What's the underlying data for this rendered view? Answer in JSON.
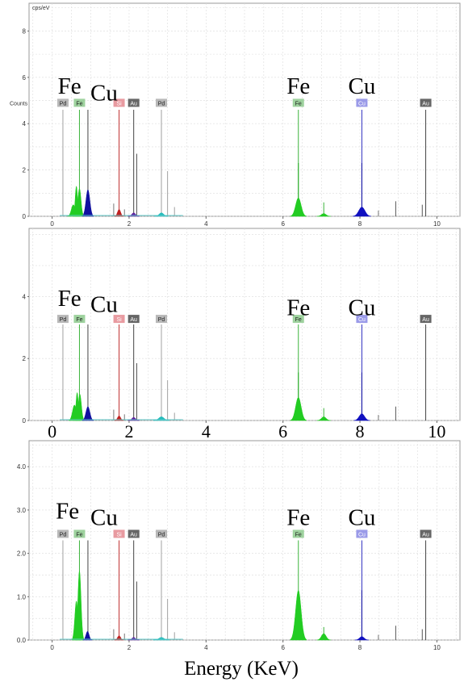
{
  "chart_data": [
    {
      "type": "bar",
      "title": "",
      "ylabel": "cps/eV",
      "ylabel2": "Counts",
      "xlabel": "",
      "xlim": [
        -0.6,
        10.6
      ],
      "ylim": [
        0,
        9.2
      ],
      "y_ticks": [
        "0",
        "2",
        "4",
        "6",
        "8"
      ],
      "x_ticks": [
        "0",
        "2",
        "4",
        "6",
        "8",
        "10"
      ],
      "large_x_ticks": false,
      "line_tags": [
        {
          "label": "Pd",
          "x": 0.28,
          "bg": "#b8b8b8",
          "fg": "#222222",
          "line": "#a0a0a0"
        },
        {
          "label": "Fe",
          "x": 0.71,
          "bg": "#9ed29e",
          "fg": "#222222",
          "line": "#3cb43c"
        },
        {
          "label": "Si",
          "x": 1.74,
          "bg": "#e89aa0",
          "fg": "#ffffff",
          "line": "#c03030"
        },
        {
          "label": "Au",
          "x": 2.12,
          "bg": "#666666",
          "fg": "#ffffff",
          "line": "#444444"
        },
        {
          "label": "Pd",
          "x": 2.84,
          "bg": "#b8b8b8",
          "fg": "#222222",
          "line": "#a0a0a0"
        },
        {
          "label": "Fe",
          "x": 6.4,
          "bg": "#9ed29e",
          "fg": "#222222",
          "line": "#3cb43c"
        },
        {
          "label": "Cu",
          "x": 8.05,
          "bg": "#9a9ae8",
          "fg": "#ffffff",
          "line": "#3030c0"
        },
        {
          "label": "Au",
          "x": 9.71,
          "bg": "#666666",
          "fg": "#ffffff",
          "line": "#444444"
        }
      ],
      "tag_y": 4.9,
      "big_labels": [
        {
          "text": "Fe",
          "x": 0.45,
          "y": 5.3
        },
        {
          "text": "Cu",
          "x": 1.35,
          "y": 5.0
        },
        {
          "text": "Fe",
          "x": 6.4,
          "y": 5.3
        },
        {
          "text": "Cu",
          "x": 8.05,
          "y": 5.3
        }
      ],
      "peaks": [
        {
          "x": 0.55,
          "height": 0.5,
          "width": 0.05,
          "color": "#22cc22"
        },
        {
          "x": 0.63,
          "height": 1.3,
          "width": 0.03,
          "color": "#22cc22"
        },
        {
          "x": 0.71,
          "height": 1.2,
          "width": 0.04,
          "color": "#22cc22"
        },
        {
          "x": 0.93,
          "height": 1.15,
          "width": 0.05,
          "color": "#1010a0"
        },
        {
          "x": 1.74,
          "height": 0.3,
          "width": 0.04,
          "color": "#c02020"
        },
        {
          "x": 2.12,
          "height": 0.15,
          "width": 0.05,
          "color": "#6020a0"
        },
        {
          "x": 2.84,
          "height": 0.15,
          "width": 0.06,
          "color": "#22bbbb"
        },
        {
          "x": 6.4,
          "height": 0.8,
          "width": 0.07,
          "color": "#22cc22"
        },
        {
          "x": 7.06,
          "height": 0.12,
          "width": 0.06,
          "color": "#22cc22"
        },
        {
          "x": 8.05,
          "height": 0.4,
          "width": 0.08,
          "color": "#1010c0"
        }
      ],
      "lines": [
        {
          "x": 0.28,
          "h": 4.6,
          "c": "#a0a0a0"
        },
        {
          "x": 0.71,
          "h": 4.6,
          "c": "#3cb43c"
        },
        {
          "x": 0.93,
          "h": 4.6,
          "c": "#444444"
        },
        {
          "x": 1.74,
          "h": 4.6,
          "c": "#c03030"
        },
        {
          "x": 2.12,
          "h": 4.6,
          "c": "#444444"
        },
        {
          "x": 2.2,
          "h": 2.7,
          "c": "#555555"
        },
        {
          "x": 2.84,
          "h": 4.6,
          "c": "#a0a0a0"
        },
        {
          "x": 3.0,
          "h": 1.95,
          "c": "#a0a0a0"
        },
        {
          "x": 6.4,
          "h": 4.6,
          "c": "#3cb43c"
        },
        {
          "x": 6.4,
          "h": 2.3,
          "c": "#22aa22"
        },
        {
          "x": 7.06,
          "h": 0.6,
          "c": "#3cb43c"
        },
        {
          "x": 8.05,
          "h": 4.6,
          "c": "#3030c0"
        },
        {
          "x": 8.05,
          "h": 2.3,
          "c": "#1010a0"
        },
        {
          "x": 8.93,
          "h": 0.65,
          "c": "#555555"
        },
        {
          "x": 9.71,
          "h": 4.6,
          "c": "#444444"
        },
        {
          "x": 9.62,
          "h": 0.5,
          "c": "#555555"
        },
        {
          "x": 1.6,
          "h": 0.55,
          "c": "#777777"
        },
        {
          "x": 1.88,
          "h": 0.3,
          "c": "#777777"
        },
        {
          "x": 3.18,
          "h": 0.4,
          "c": "#a0a0a0"
        },
        {
          "x": 8.48,
          "h": 0.25,
          "c": "#777777"
        }
      ]
    },
    {
      "type": "bar",
      "title": "",
      "ylabel": "",
      "ylabel2": "",
      "xlabel": "",
      "xlim": [
        -0.6,
        10.6
      ],
      "ylim": [
        0,
        6.2
      ],
      "y_ticks": [
        "0",
        "2",
        "4"
      ],
      "x_ticks": [
        "0",
        "2",
        "4",
        "6",
        "8",
        "10"
      ],
      "large_x_ticks": true,
      "line_tags": [
        {
          "label": "Pd",
          "x": 0.28,
          "bg": "#b8b8b8",
          "fg": "#222222",
          "line": "#a0a0a0"
        },
        {
          "label": "Fe",
          "x": 0.71,
          "bg": "#9ed29e",
          "fg": "#222222",
          "line": "#3cb43c"
        },
        {
          "label": "Si",
          "x": 1.74,
          "bg": "#e89aa0",
          "fg": "#ffffff",
          "line": "#c03030"
        },
        {
          "label": "Au",
          "x": 2.12,
          "bg": "#666666",
          "fg": "#ffffff",
          "line": "#444444"
        },
        {
          "label": "Pd",
          "x": 2.84,
          "bg": "#b8b8b8",
          "fg": "#222222",
          "line": "#a0a0a0"
        },
        {
          "label": "Fe",
          "x": 6.4,
          "bg": "#9ed29e",
          "fg": "#222222",
          "line": "#3cb43c"
        },
        {
          "label": "Cu",
          "x": 8.05,
          "bg": "#9a9ae8",
          "fg": "#ffffff",
          "line": "#3030c0"
        },
        {
          "label": "Au",
          "x": 9.71,
          "bg": "#666666",
          "fg": "#ffffff",
          "line": "#444444"
        }
      ],
      "tag_y": 3.28,
      "big_labels": [
        {
          "text": "Fe",
          "x": 0.45,
          "y": 3.7
        },
        {
          "text": "Cu",
          "x": 1.35,
          "y": 3.5
        },
        {
          "text": "Fe",
          "x": 6.4,
          "y": 3.4
        },
        {
          "text": "Cu",
          "x": 8.05,
          "y": 3.4
        }
      ],
      "peaks": [
        {
          "x": 0.58,
          "height": 0.5,
          "width": 0.05,
          "color": "#22cc22"
        },
        {
          "x": 0.65,
          "height": 0.9,
          "width": 0.03,
          "color": "#22cc22"
        },
        {
          "x": 0.72,
          "height": 0.85,
          "width": 0.04,
          "color": "#22cc22"
        },
        {
          "x": 0.93,
          "height": 0.45,
          "width": 0.05,
          "color": "#1010a0"
        },
        {
          "x": 1.74,
          "height": 0.15,
          "width": 0.04,
          "color": "#c02020"
        },
        {
          "x": 2.12,
          "height": 0.1,
          "width": 0.05,
          "color": "#6020a0"
        },
        {
          "x": 2.84,
          "height": 0.12,
          "width": 0.07,
          "color": "#22bbbb"
        },
        {
          "x": 6.4,
          "height": 0.75,
          "width": 0.07,
          "color": "#22cc22"
        },
        {
          "x": 7.06,
          "height": 0.12,
          "width": 0.06,
          "color": "#22cc22"
        },
        {
          "x": 8.05,
          "height": 0.22,
          "width": 0.07,
          "color": "#1010c0"
        }
      ],
      "lines": [
        {
          "x": 0.28,
          "h": 3.1,
          "c": "#a0a0a0"
        },
        {
          "x": 0.71,
          "h": 3.1,
          "c": "#3cb43c"
        },
        {
          "x": 0.93,
          "h": 3.1,
          "c": "#444444"
        },
        {
          "x": 1.74,
          "h": 3.1,
          "c": "#c03030"
        },
        {
          "x": 2.12,
          "h": 3.1,
          "c": "#444444"
        },
        {
          "x": 2.2,
          "h": 1.85,
          "c": "#555555"
        },
        {
          "x": 2.84,
          "h": 3.1,
          "c": "#a0a0a0"
        },
        {
          "x": 3.0,
          "h": 1.3,
          "c": "#a0a0a0"
        },
        {
          "x": 6.4,
          "h": 3.1,
          "c": "#3cb43c"
        },
        {
          "x": 6.4,
          "h": 1.55,
          "c": "#22aa22"
        },
        {
          "x": 7.06,
          "h": 0.4,
          "c": "#3cb43c"
        },
        {
          "x": 8.05,
          "h": 3.1,
          "c": "#3030c0"
        },
        {
          "x": 8.05,
          "h": 1.55,
          "c": "#1010a0"
        },
        {
          "x": 8.93,
          "h": 0.45,
          "c": "#555555"
        },
        {
          "x": 9.71,
          "h": 3.1,
          "c": "#444444"
        },
        {
          "x": 1.6,
          "h": 0.35,
          "c": "#777777"
        },
        {
          "x": 1.88,
          "h": 0.2,
          "c": "#777777"
        },
        {
          "x": 3.18,
          "h": 0.25,
          "c": "#a0a0a0"
        },
        {
          "x": 8.48,
          "h": 0.18,
          "c": "#777777"
        }
      ]
    },
    {
      "type": "bar",
      "title": "",
      "ylabel": "",
      "ylabel2": "",
      "xlabel": "Energy (KeV)",
      "xlim": [
        -0.6,
        10.6
      ],
      "ylim": [
        0,
        4.6
      ],
      "y_ticks": [
        "0.0",
        "1.0",
        "2.0",
        "3.0",
        "4.0"
      ],
      "x_ticks": [
        "0",
        "2",
        "4",
        "6",
        "8",
        "10"
      ],
      "large_x_ticks": false,
      "line_tags": [
        {
          "label": "Pd",
          "x": 0.28,
          "bg": "#b8b8b8",
          "fg": "#222222",
          "line": "#a0a0a0"
        },
        {
          "label": "Fe",
          "x": 0.71,
          "bg": "#9ed29e",
          "fg": "#222222",
          "line": "#3cb43c"
        },
        {
          "label": "Si",
          "x": 1.74,
          "bg": "#e89aa0",
          "fg": "#ffffff",
          "line": "#c03030"
        },
        {
          "label": "Au",
          "x": 2.12,
          "bg": "#666666",
          "fg": "#ffffff",
          "line": "#444444"
        },
        {
          "label": "Pd",
          "x": 2.84,
          "bg": "#b8b8b8",
          "fg": "#222222",
          "line": "#a0a0a0"
        },
        {
          "label": "Fe",
          "x": 6.4,
          "bg": "#9ed29e",
          "fg": "#222222",
          "line": "#3cb43c"
        },
        {
          "label": "Cu",
          "x": 8.05,
          "bg": "#9a9ae8",
          "fg": "#ffffff",
          "line": "#3030c0"
        },
        {
          "label": "Au",
          "x": 9.71,
          "bg": "#666666",
          "fg": "#ffffff",
          "line": "#444444"
        }
      ],
      "tag_y": 2.45,
      "big_labels": [
        {
          "text": "Fe",
          "x": 0.4,
          "y": 2.8
        },
        {
          "text": "Cu",
          "x": 1.35,
          "y": 2.65
        },
        {
          "text": "Fe",
          "x": 6.4,
          "y": 2.65
        },
        {
          "text": "Cu",
          "x": 8.05,
          "y": 2.65
        }
      ],
      "peaks": [
        {
          "x": 0.63,
          "height": 0.9,
          "width": 0.04,
          "color": "#22cc22"
        },
        {
          "x": 0.71,
          "height": 1.6,
          "width": 0.04,
          "color": "#22cc22"
        },
        {
          "x": 0.92,
          "height": 0.2,
          "width": 0.04,
          "color": "#1010a0"
        },
        {
          "x": 1.74,
          "height": 0.1,
          "width": 0.04,
          "color": "#c02020"
        },
        {
          "x": 2.12,
          "height": 0.06,
          "width": 0.05,
          "color": "#6020a0"
        },
        {
          "x": 2.84,
          "height": 0.06,
          "width": 0.07,
          "color": "#22bbbb"
        },
        {
          "x": 6.4,
          "height": 1.15,
          "width": 0.07,
          "color": "#22cc22"
        },
        {
          "x": 7.06,
          "height": 0.15,
          "width": 0.06,
          "color": "#22cc22"
        },
        {
          "x": 8.05,
          "height": 0.08,
          "width": 0.06,
          "color": "#1010c0"
        }
      ],
      "lines": [
        {
          "x": 0.28,
          "h": 2.3,
          "c": "#a0a0a0"
        },
        {
          "x": 0.71,
          "h": 2.3,
          "c": "#3cb43c"
        },
        {
          "x": 0.93,
          "h": 2.3,
          "c": "#444444"
        },
        {
          "x": 1.74,
          "h": 2.3,
          "c": "#c03030"
        },
        {
          "x": 2.12,
          "h": 2.3,
          "c": "#444444"
        },
        {
          "x": 2.2,
          "h": 1.35,
          "c": "#555555"
        },
        {
          "x": 2.84,
          "h": 2.3,
          "c": "#a0a0a0"
        },
        {
          "x": 3.0,
          "h": 0.95,
          "c": "#a0a0a0"
        },
        {
          "x": 6.4,
          "h": 2.3,
          "c": "#3cb43c"
        },
        {
          "x": 7.06,
          "h": 0.3,
          "c": "#3cb43c"
        },
        {
          "x": 8.05,
          "h": 2.3,
          "c": "#3030c0"
        },
        {
          "x": 8.05,
          "h": 1.15,
          "c": "#1010a0"
        },
        {
          "x": 8.93,
          "h": 0.33,
          "c": "#555555"
        },
        {
          "x": 9.71,
          "h": 2.3,
          "c": "#444444"
        },
        {
          "x": 9.62,
          "h": 0.25,
          "c": "#555555"
        },
        {
          "x": 1.6,
          "h": 0.25,
          "c": "#777777"
        },
        {
          "x": 1.88,
          "h": 0.15,
          "c": "#777777"
        },
        {
          "x": 3.18,
          "h": 0.18,
          "c": "#a0a0a0"
        },
        {
          "x": 8.48,
          "h": 0.12,
          "c": "#777777"
        }
      ]
    }
  ]
}
